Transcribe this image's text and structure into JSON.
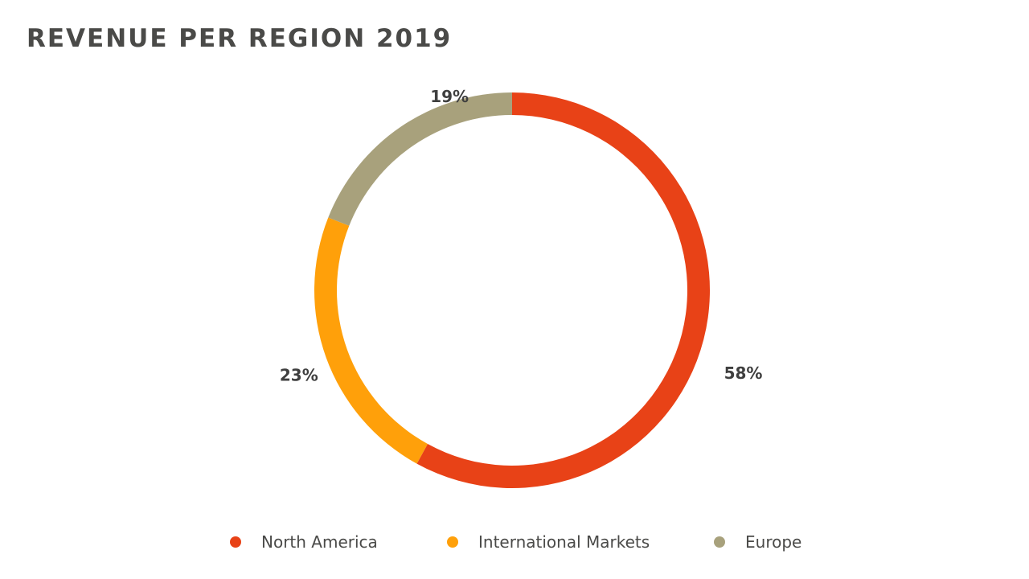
{
  "chart_data": {
    "type": "pie",
    "title": "REVENUE PER REGION 2019",
    "categories": [
      "North America",
      "International Markets",
      "Europe"
    ],
    "values": [
      58,
      23,
      19
    ],
    "labels": [
      "58%",
      "23%",
      "19%"
    ],
    "colors": [
      "#e84217",
      "#ffa00a",
      "#a8a17c"
    ],
    "hole": true,
    "legend_placement": "bottom"
  }
}
